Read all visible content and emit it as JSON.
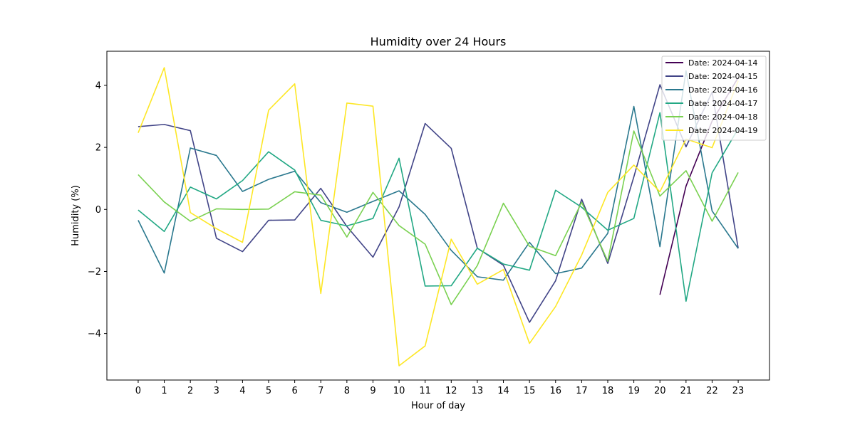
{
  "chart_data": {
    "type": "line",
    "title": "Humidity over 24 Hours",
    "xlabel": "Hour of day",
    "ylabel": "Humidity (%)",
    "xlim": [
      -1.2,
      24.2
    ],
    "ylim": [
      -5.5,
      5.1
    ],
    "x_ticks": [
      0,
      1,
      2,
      3,
      4,
      5,
      6,
      7,
      8,
      9,
      10,
      11,
      12,
      13,
      14,
      15,
      16,
      17,
      18,
      19,
      20,
      21,
      22,
      23
    ],
    "y_ticks": [
      -4,
      -2,
      0,
      2,
      4
    ],
    "y_tick_labels": [
      "−4",
      "−2",
      "0",
      "2",
      "4"
    ],
    "grid": false,
    "legend_position": "top-right",
    "series": [
      {
        "name": "Date: 2024-04-14",
        "color": "#440154",
        "x": [
          20,
          21,
          22,
          23
        ],
        "values": [
          -2.75,
          0.75,
          2.85,
          4.25
        ]
      },
      {
        "name": "Date: 2024-04-15",
        "color": "#414487",
        "x": [
          0,
          1,
          2,
          3,
          4,
          5,
          6,
          7,
          8,
          9,
          10,
          11,
          12,
          13,
          14,
          15,
          16,
          17,
          18,
          19,
          20,
          21,
          22,
          23
        ],
        "values": [
          2.67,
          2.74,
          2.54,
          -0.93,
          -1.36,
          -0.35,
          -0.34,
          0.68,
          -0.55,
          -1.54,
          0.08,
          2.77,
          1.97,
          -1.25,
          -1.8,
          -3.64,
          -2.3,
          0.33,
          -1.74,
          1.05,
          4.02,
          2.02,
          3.78,
          -1.25
        ]
      },
      {
        "name": "Date: 2024-04-16",
        "color": "#2a788e",
        "x": [
          0,
          1,
          2,
          3,
          4,
          5,
          6,
          7,
          8,
          9,
          10,
          11,
          12,
          13,
          14,
          15,
          16,
          17,
          18,
          19,
          20,
          21,
          22,
          23
        ],
        "values": [
          -0.35,
          -2.05,
          1.98,
          1.74,
          0.58,
          0.97,
          1.23,
          0.22,
          -0.09,
          0.26,
          0.6,
          -0.16,
          -1.32,
          -2.17,
          -2.28,
          -1.06,
          -2.07,
          -1.89,
          -0.77,
          3.32,
          -1.2,
          4.47,
          -0.05,
          -1.26
        ]
      },
      {
        "name": "Date: 2024-04-17",
        "color": "#22a884",
        "x": [
          0,
          1,
          2,
          3,
          4,
          5,
          6,
          7,
          8,
          9,
          10,
          11,
          12,
          13,
          14,
          15,
          16,
          17,
          18,
          19,
          20,
          21,
          22,
          23
        ],
        "values": [
          -0.02,
          -0.71,
          0.72,
          0.34,
          0.93,
          1.86,
          1.27,
          -0.35,
          -0.53,
          -0.29,
          1.65,
          -2.47,
          -2.46,
          -1.25,
          -1.76,
          -1.96,
          0.62,
          0.07,
          -0.67,
          -0.29,
          3.12,
          -2.96,
          1.18,
          2.6
        ]
      },
      {
        "name": "Date: 2024-04-18",
        "color": "#7ad151",
        "x": [
          0,
          1,
          2,
          3,
          4,
          5,
          6,
          7,
          8,
          9,
          10,
          11,
          12,
          13,
          14,
          15,
          16,
          17,
          18,
          19,
          20,
          21,
          22,
          23
        ],
        "values": [
          1.12,
          0.24,
          -0.38,
          0.02,
          0.0,
          0.01,
          0.57,
          0.46,
          -0.89,
          0.55,
          -0.52,
          -1.12,
          -3.07,
          -1.81,
          0.2,
          -1.19,
          -1.49,
          0.23,
          -1.67,
          2.53,
          0.43,
          1.25,
          -0.38,
          1.19
        ]
      },
      {
        "name": "Date: 2024-04-19",
        "color": "#fde725",
        "x": [
          0,
          1,
          2,
          3,
          4,
          5,
          6,
          7,
          8,
          9,
          10,
          11,
          12,
          13,
          14,
          15,
          16,
          17,
          18,
          19,
          20,
          21,
          22,
          23
        ],
        "values": [
          2.47,
          4.57,
          -0.1,
          -0.62,
          -1.06,
          3.2,
          4.05,
          -2.71,
          3.43,
          3.33,
          -5.04,
          -4.4,
          -0.96,
          -2.41,
          -1.94,
          -4.32,
          -3.13,
          -1.47,
          0.55,
          1.43,
          0.57,
          2.27,
          1.99,
          4.15
        ]
      }
    ]
  }
}
